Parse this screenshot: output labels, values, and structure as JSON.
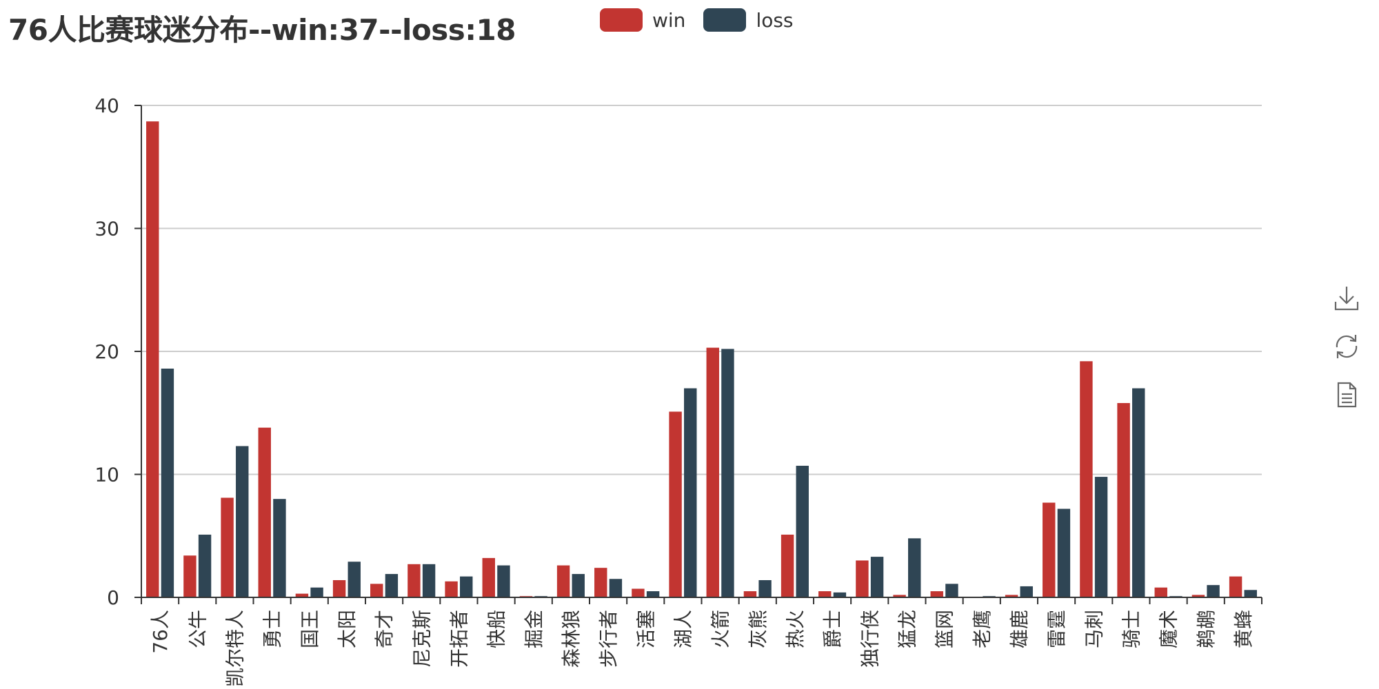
{
  "page": {
    "title": "76人比赛球迷分布--win:37--loss:18"
  },
  "legend": {
    "items": [
      {
        "name": "win",
        "color": "#c23531"
      },
      {
        "name": "loss",
        "color": "#2f4554"
      }
    ]
  },
  "toolbox": {
    "items": [
      {
        "name": "download-icon"
      },
      {
        "name": "refresh-icon"
      },
      {
        "name": "data-view-icon"
      }
    ]
  },
  "chart_data": {
    "type": "bar",
    "title": "76人比赛球迷分布--win:37--loss:18",
    "categories": [
      "76人",
      "公牛",
      "凯尔特人",
      "勇士",
      "国王",
      "太阳",
      "奇才",
      "尼克斯",
      "开拓者",
      "快船",
      "掘金",
      "森林狼",
      "步行者",
      "活塞",
      "湖人",
      "火箭",
      "灰熊",
      "热火",
      "爵士",
      "独行侠",
      "猛龙",
      "篮网",
      "老鹰",
      "雄鹿",
      "雷霆",
      "马刺",
      "骑士",
      "魔术",
      "鹈鹕",
      "黄蜂"
    ],
    "series": [
      {
        "name": "win",
        "color": "#c23531",
        "values": [
          38.7,
          3.4,
          8.1,
          13.8,
          0.3,
          1.4,
          1.1,
          2.7,
          1.3,
          3.2,
          0.1,
          2.6,
          2.4,
          0.7,
          15.1,
          20.3,
          0.5,
          5.1,
          0.5,
          3.0,
          0.2,
          0.5,
          0.05,
          0.2,
          7.7,
          19.2,
          15.8,
          0.8,
          0.2,
          1.7
        ]
      },
      {
        "name": "loss",
        "color": "#2f4554",
        "values": [
          18.6,
          5.1,
          12.3,
          8.0,
          0.8,
          2.9,
          1.9,
          2.7,
          1.7,
          2.6,
          0.1,
          1.9,
          1.5,
          0.5,
          17.0,
          20.2,
          1.4,
          10.7,
          0.4,
          3.3,
          4.8,
          1.1,
          0.1,
          0.9,
          7.2,
          9.8,
          17.0,
          0.1,
          1.0,
          0.6
        ]
      }
    ],
    "ylim": [
      0,
      40
    ],
    "yticks": [
      0,
      10,
      20,
      30,
      40
    ],
    "grid": true,
    "legend_position": "top-center"
  }
}
